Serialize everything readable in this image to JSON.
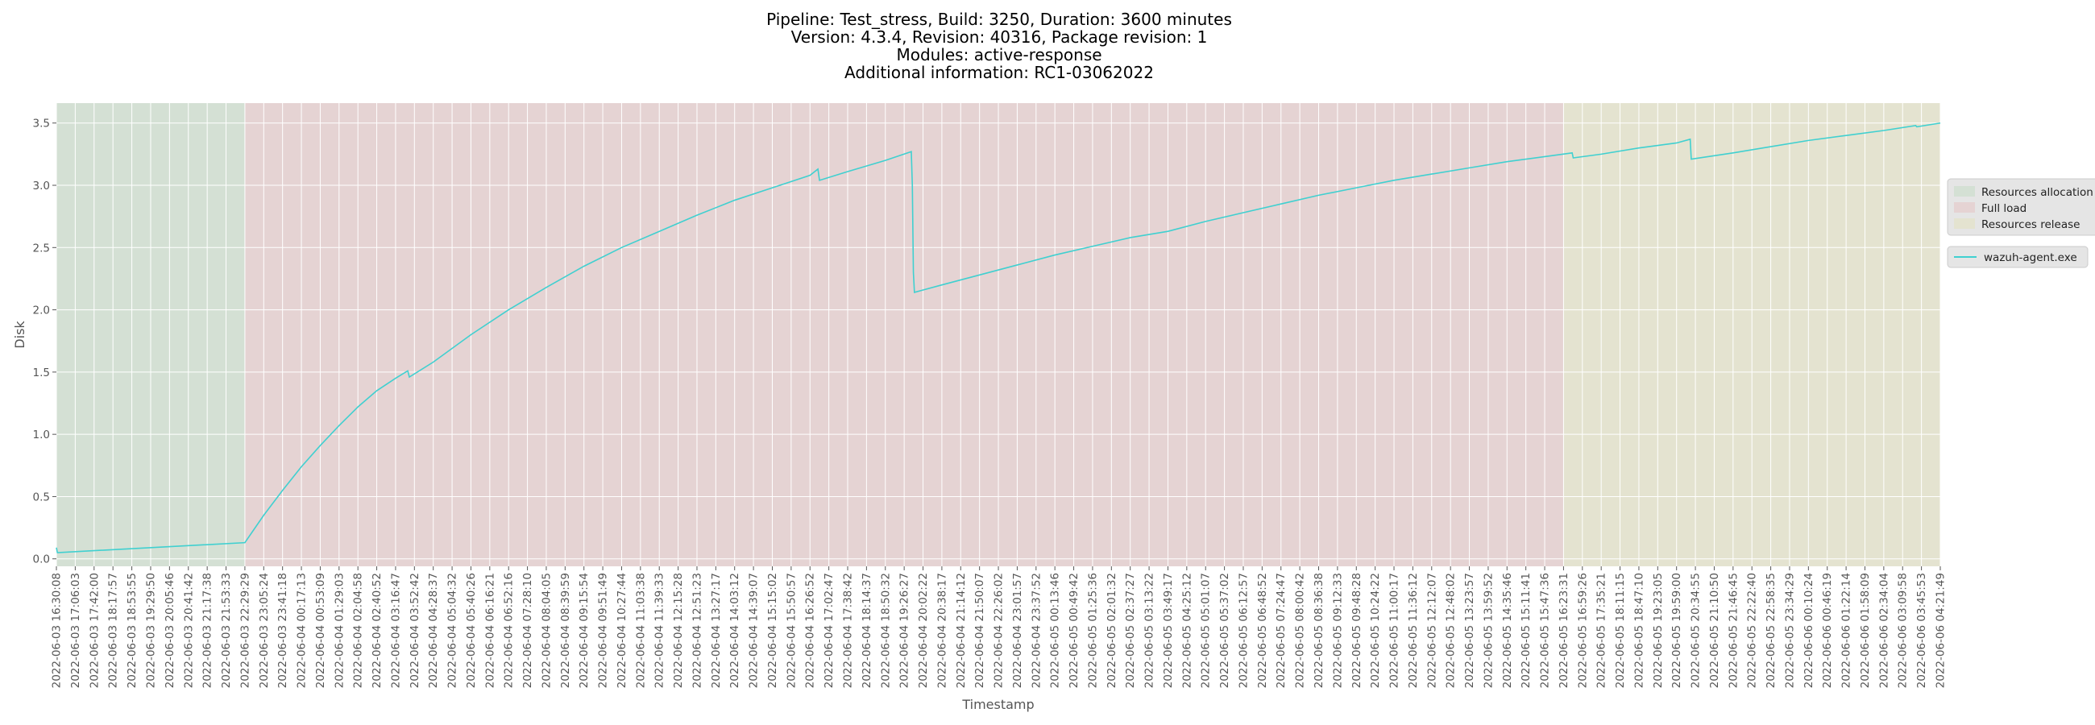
{
  "chart_data": {
    "type": "line",
    "title_lines": [
      "Pipeline: Test_stress, Build: 3250, Duration: 3600 minutes",
      "Version: 4.3.4, Revision: 40316, Package revision: 1",
      "Modules: active-response",
      "Additional information: RC1-03062022"
    ],
    "xlabel": "Timestamp",
    "ylabel": "Disk",
    "ylim": [
      -0.06,
      3.66
    ],
    "y_ticks": [
      "0.0",
      "0.5",
      "1.0",
      "1.5",
      "2.0",
      "2.5",
      "3.0",
      "3.5"
    ],
    "x_ticks": [
      "2022-06-03 16:30:08",
      "2022-06-03 17:06:03",
      "2022-06-03 17:42:00",
      "2022-06-03 18:17:57",
      "2022-06-03 18:53:55",
      "2022-06-03 19:29:50",
      "2022-06-03 20:05:46",
      "2022-06-03 20:41:42",
      "2022-06-03 21:17:38",
      "2022-06-03 21:53:33",
      "2022-06-03 22:29:29",
      "2022-06-03 23:05:24",
      "2022-06-03 23:41:18",
      "2022-06-04 00:17:13",
      "2022-06-04 00:53:09",
      "2022-06-04 01:29:03",
      "2022-06-04 02:04:58",
      "2022-06-04 02:40:52",
      "2022-06-04 03:16:47",
      "2022-06-04 03:52:42",
      "2022-06-04 04:28:37",
      "2022-06-04 05:04:32",
      "2022-06-04 05:40:26",
      "2022-06-04 06:16:21",
      "2022-06-04 06:52:16",
      "2022-06-04 07:28:10",
      "2022-06-04 08:04:05",
      "2022-06-04 08:39:59",
      "2022-06-04 09:15:54",
      "2022-06-04 09:51:49",
      "2022-06-04 10:27:44",
      "2022-06-04 11:03:38",
      "2022-06-04 11:39:33",
      "2022-06-04 12:15:28",
      "2022-06-04 12:51:23",
      "2022-06-04 13:27:17",
      "2022-06-04 14:03:12",
      "2022-06-04 14:39:07",
      "2022-06-04 15:15:02",
      "2022-06-04 15:50:57",
      "2022-06-04 16:26:52",
      "2022-06-04 17:02:47",
      "2022-06-04 17:38:42",
      "2022-06-04 18:14:37",
      "2022-06-04 18:50:32",
      "2022-06-04 19:26:27",
      "2022-06-04 20:02:22",
      "2022-06-04 20:38:17",
      "2022-06-04 21:14:12",
      "2022-06-04 21:50:07",
      "2022-06-04 22:26:02",
      "2022-06-04 23:01:57",
      "2022-06-04 23:37:52",
      "2022-06-05 00:13:46",
      "2022-06-05 00:49:42",
      "2022-06-05 01:25:36",
      "2022-06-05 02:01:32",
      "2022-06-05 02:37:27",
      "2022-06-05 03:13:22",
      "2022-06-05 03:49:17",
      "2022-06-05 04:25:12",
      "2022-06-05 05:01:07",
      "2022-06-05 05:37:02",
      "2022-06-05 06:12:57",
      "2022-06-05 06:48:52",
      "2022-06-05 07:24:47",
      "2022-06-05 08:00:42",
      "2022-06-05 08:36:38",
      "2022-06-05 09:12:33",
      "2022-06-05 09:48:28",
      "2022-06-05 10:24:22",
      "2022-06-05 11:00:17",
      "2022-06-05 11:36:12",
      "2022-06-05 12:12:07",
      "2022-06-05 12:48:02",
      "2022-06-05 13:23:57",
      "2022-06-05 13:59:52",
      "2022-06-05 14:35:46",
      "2022-06-05 15:11:41",
      "2022-06-05 15:47:36",
      "2022-06-05 16:23:31",
      "2022-06-05 16:59:26",
      "2022-06-05 17:35:21",
      "2022-06-05 18:11:15",
      "2022-06-05 18:47:10",
      "2022-06-05 19:23:05",
      "2022-06-05 19:59:00",
      "2022-06-05 20:34:55",
      "2022-06-05 21:10:50",
      "2022-06-05 21:46:45",
      "2022-06-05 22:22:40",
      "2022-06-05 22:58:35",
      "2022-06-05 23:34:29",
      "2022-06-06 00:10:24",
      "2022-06-06 00:46:19",
      "2022-06-06 01:22:14",
      "2022-06-06 01:58:09",
      "2022-06-06 02:34:04",
      "2022-06-06 03:09:58",
      "2022-06-06 03:45:53",
      "2022-06-06 04:21:49"
    ],
    "phases": [
      {
        "name": "Resources allocation",
        "start": "2022-06-03 16:30:08",
        "end": "2022-06-03 22:29:29",
        "color": "#d4e0d4"
      },
      {
        "name": "Full load",
        "start": "2022-06-03 22:29:29",
        "end": "2022-06-05 16:23:31",
        "color": "#e5d3d3"
      },
      {
        "name": "Resources release",
        "start": "2022-06-05 16:23:31",
        "end": "2022-06-06 04:21:49",
        "color": "#e4e3d0"
      }
    ],
    "series": [
      {
        "name": "wazuh-agent.exe",
        "color": "#40d0d0",
        "points": [
          [
            "2022-06-03 16:30:08",
            0.09
          ],
          [
            "2022-06-03 16:32:00",
            0.05
          ],
          [
            "2022-06-03 22:29:29",
            0.13
          ],
          [
            "2022-06-03 23:05:24",
            0.35
          ],
          [
            "2022-06-03 23:41:18",
            0.55
          ],
          [
            "2022-06-04 00:17:13",
            0.74
          ],
          [
            "2022-06-04 00:53:09",
            0.91
          ],
          [
            "2022-06-04 01:29:03",
            1.07
          ],
          [
            "2022-06-04 02:04:58",
            1.22
          ],
          [
            "2022-06-04 02:40:52",
            1.35
          ],
          [
            "2022-06-04 03:16:47",
            1.45
          ],
          [
            "2022-06-04 03:40:00",
            1.51
          ],
          [
            "2022-06-04 03:43:00",
            1.46
          ],
          [
            "2022-06-04 04:28:37",
            1.58
          ],
          [
            "2022-06-04 05:40:26",
            1.8
          ],
          [
            "2022-06-04 06:52:16",
            2.0
          ],
          [
            "2022-06-04 08:04:05",
            2.18
          ],
          [
            "2022-06-04 09:15:54",
            2.35
          ],
          [
            "2022-06-04 10:27:44",
            2.5
          ],
          [
            "2022-06-04 11:39:33",
            2.63
          ],
          [
            "2022-06-04 12:51:23",
            2.76
          ],
          [
            "2022-06-04 14:03:12",
            2.88
          ],
          [
            "2022-06-04 15:15:02",
            2.98
          ],
          [
            "2022-06-04 16:26:52",
            3.08
          ],
          [
            "2022-06-04 16:42:00",
            3.13
          ],
          [
            "2022-06-04 16:45:00",
            3.04
          ],
          [
            "2022-06-04 17:38:42",
            3.11
          ],
          [
            "2022-06-04 18:50:32",
            3.2
          ],
          [
            "2022-06-04 19:40:00",
            3.27
          ],
          [
            "2022-06-04 19:42:00",
            3.0
          ],
          [
            "2022-06-04 19:44:00",
            2.3
          ],
          [
            "2022-06-04 19:46:00",
            2.14
          ],
          [
            "2022-06-04 20:38:17",
            2.2
          ],
          [
            "2022-06-04 21:50:07",
            2.28
          ],
          [
            "2022-06-04 23:01:57",
            2.36
          ],
          [
            "2022-06-05 00:13:46",
            2.44
          ],
          [
            "2022-06-05 01:25:36",
            2.51
          ],
          [
            "2022-06-05 02:37:27",
            2.58
          ],
          [
            "2022-06-05 03:49:17",
            2.63
          ],
          [
            "2022-06-05 05:01:07",
            2.71
          ],
          [
            "2022-06-05 06:12:57",
            2.78
          ],
          [
            "2022-06-05 07:24:47",
            2.85
          ],
          [
            "2022-06-05 08:36:38",
            2.92
          ],
          [
            "2022-06-05 09:48:28",
            2.98
          ],
          [
            "2022-06-05 11:00:17",
            3.04
          ],
          [
            "2022-06-05 12:12:07",
            3.09
          ],
          [
            "2022-06-05 13:23:57",
            3.14
          ],
          [
            "2022-06-05 14:35:46",
            3.19
          ],
          [
            "2022-06-05 15:47:36",
            3.23
          ],
          [
            "2022-06-05 16:40:00",
            3.26
          ],
          [
            "2022-06-05 16:42:00",
            3.22
          ],
          [
            "2022-06-05 17:35:21",
            3.25
          ],
          [
            "2022-06-05 18:47:10",
            3.3
          ],
          [
            "2022-06-05 19:59:00",
            3.34
          ],
          [
            "2022-06-05 20:25:00",
            3.37
          ],
          [
            "2022-06-05 20:27:00",
            3.21
          ],
          [
            "2022-06-05 21:46:45",
            3.26
          ],
          [
            "2022-06-05 22:58:35",
            3.31
          ],
          [
            "2022-06-06 00:10:24",
            3.36
          ],
          [
            "2022-06-06 01:22:14",
            3.4
          ],
          [
            "2022-06-06 02:34:04",
            3.44
          ],
          [
            "2022-06-06 03:35:00",
            3.48
          ],
          [
            "2022-06-06 03:37:00",
            3.47
          ],
          [
            "2022-06-06 04:21:49",
            3.5
          ]
        ]
      }
    ],
    "grid": true,
    "legend_placement": "right outside"
  }
}
